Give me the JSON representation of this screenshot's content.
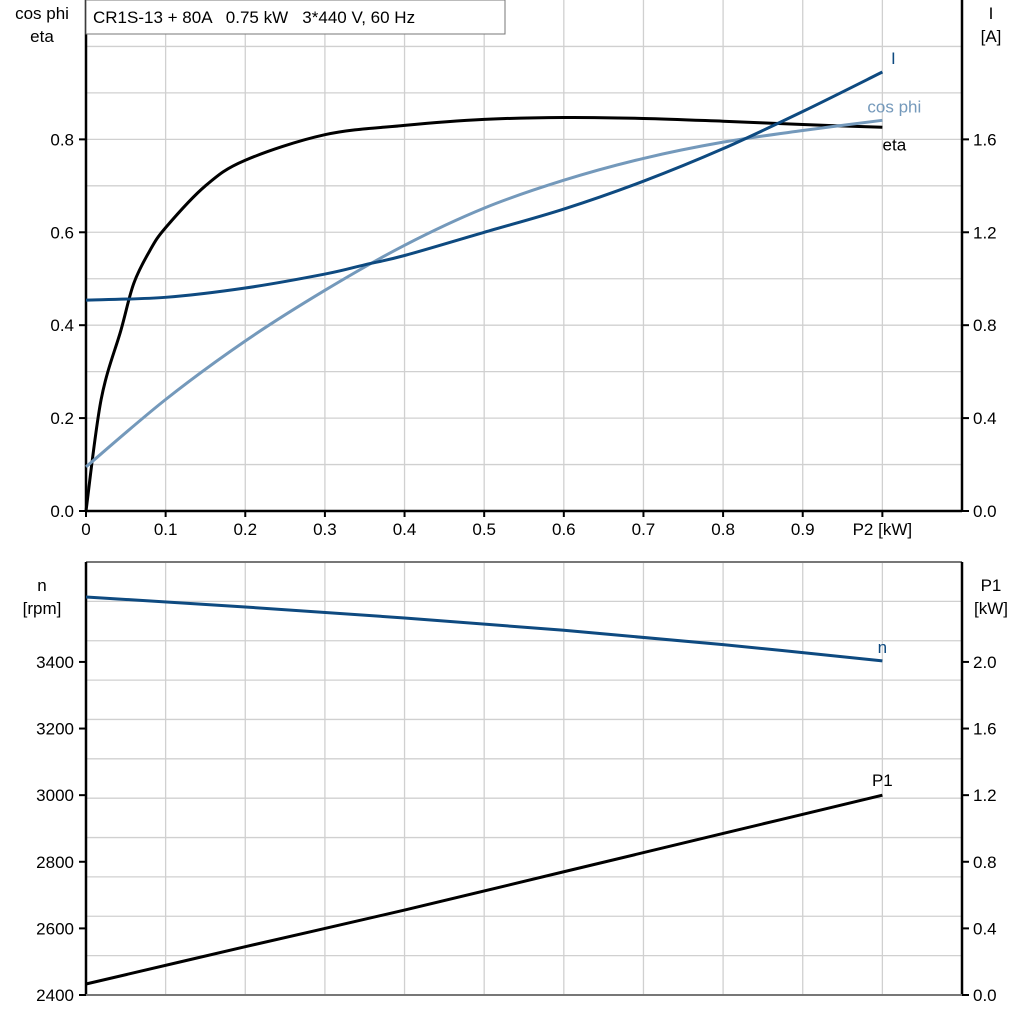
{
  "chart_data": [
    {
      "type": "line",
      "title": "CR1S-13 + 80A   0.75 kW   3*440 V, 60 Hz",
      "xlabel": "P2 [kW]",
      "ylabel_left": [
        "cos phi",
        "eta"
      ],
      "ylabel_right": [
        "I",
        "[A]"
      ],
      "xlim": [
        0,
        1.1
      ],
      "ylim_left": [
        0,
        1.1
      ],
      "ylim_right": [
        0,
        2.2
      ],
      "x_ticks": [
        "0",
        "0.1",
        "0.2",
        "0.3",
        "0.4",
        "0.5",
        "0.6",
        "0.7",
        "0.8",
        "0.9"
      ],
      "y_ticks_left": [
        "0.0",
        "0.2",
        "0.4",
        "0.6",
        "0.8"
      ],
      "y_ticks_right": [
        "0.0",
        "0.4",
        "0.8",
        "1.2",
        "1.6"
      ],
      "grid": true,
      "series": [
        {
          "name": "eta",
          "axis": "left",
          "color": "#000000",
          "x": [
            0,
            0.019,
            0.044,
            0.06,
            0.08,
            0.1,
            0.15,
            0.2,
            0.3,
            0.4,
            0.5,
            0.6,
            0.7,
            0.8,
            0.9,
            1.0
          ],
          "y": [
            0,
            0.24,
            0.39,
            0.49,
            0.56,
            0.61,
            0.7,
            0.755,
            0.81,
            0.83,
            0.843,
            0.847,
            0.845,
            0.839,
            0.832,
            0.826
          ]
        },
        {
          "name": "cos phi",
          "axis": "left",
          "color": "#7499bb",
          "x": [
            0,
            0.1,
            0.2,
            0.3,
            0.4,
            0.5,
            0.6,
            0.7,
            0.8,
            0.9,
            1.0
          ],
          "y": [
            0.095,
            0.24,
            0.366,
            0.475,
            0.572,
            0.652,
            0.712,
            0.759,
            0.794,
            0.819,
            0.841
          ]
        },
        {
          "name": "I",
          "axis": "right",
          "color": "#0e4a80",
          "x": [
            0,
            0.1,
            0.2,
            0.3,
            0.35,
            0.4,
            0.5,
            0.6,
            0.7,
            0.8,
            0.9,
            1.0
          ],
          "y": [
            0.908,
            0.92,
            0.96,
            1.02,
            1.06,
            1.1,
            1.2,
            1.3,
            1.42,
            1.56,
            1.72,
            1.89
          ]
        }
      ]
    },
    {
      "type": "line",
      "ylabel_left": [
        "n",
        "[rpm]"
      ],
      "ylabel_right": [
        "P1",
        "[kW]"
      ],
      "xlim": [
        0,
        1.1
      ],
      "ylim_left": [
        2400,
        3700
      ],
      "ylim_right": [
        0,
        2.6
      ],
      "y_ticks_left": [
        "2400",
        "2600",
        "2800",
        "3000",
        "3200",
        "3400"
      ],
      "y_ticks_right": [
        "0.0",
        "0.4",
        "0.8",
        "1.2",
        "1.6",
        "2.0"
      ],
      "grid": true,
      "series": [
        {
          "name": "n",
          "axis": "left",
          "color": "#0e4a80",
          "x": [
            0,
            0.2,
            0.4,
            0.6,
            0.8,
            1.0
          ],
          "y": [
            3595,
            3565,
            3532,
            3495,
            3452,
            3403
          ]
        },
        {
          "name": "P1",
          "axis": "right",
          "color": "#000000",
          "x": [
            0,
            0.2,
            0.4,
            0.6,
            0.8,
            1.0
          ],
          "y": [
            0.066,
            0.29,
            0.51,
            0.74,
            0.97,
            1.2
          ]
        }
      ]
    }
  ]
}
